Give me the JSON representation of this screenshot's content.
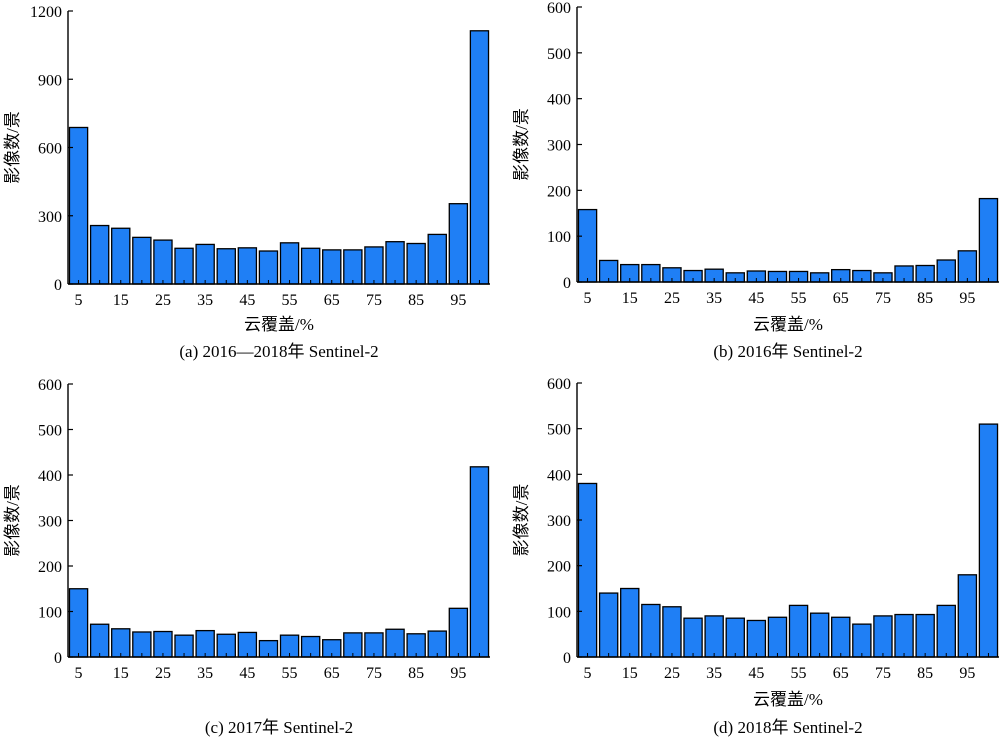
{
  "chart_data": [
    {
      "type": "bar",
      "caption": "(a) 2016—2018年 Sentinel-2",
      "xlabel": "云覆盖/%",
      "ylabel": "影像数/景",
      "ylim": [
        0,
        1200
      ],
      "yticks": [
        0,
        300,
        600,
        900,
        1200
      ],
      "xticks": [
        5,
        15,
        25,
        35,
        45,
        55,
        65,
        75,
        85,
        95
      ],
      "bar_color": "#1f7ff5",
      "categories": [
        5,
        10,
        15,
        20,
        25,
        30,
        35,
        40,
        45,
        50,
        55,
        60,
        65,
        70,
        75,
        80,
        85,
        90,
        95,
        100
      ],
      "values": [
        688,
        257,
        245,
        205,
        193,
        157,
        174,
        155,
        159,
        145,
        181,
        157,
        150,
        150,
        163,
        186,
        178,
        218,
        353,
        1113
      ]
    },
    {
      "type": "bar",
      "caption": "(b) 2016年 Sentinel-2",
      "xlabel": "云覆盖/%",
      "ylabel": "影像数/景",
      "ylim": [
        0,
        600
      ],
      "yticks": [
        0,
        100,
        200,
        300,
        400,
        500,
        600
      ],
      "xticks": [
        5,
        15,
        25,
        35,
        45,
        55,
        65,
        75,
        85,
        95
      ],
      "bar_color": "#1f7ff5",
      "categories": [
        5,
        10,
        15,
        20,
        25,
        30,
        35,
        40,
        45,
        50,
        55,
        60,
        65,
        70,
        75,
        80,
        85,
        90,
        95,
        100
      ],
      "values": [
        158,
        47,
        38,
        38,
        31,
        25,
        28,
        20,
        24,
        23,
        23,
        20,
        27,
        25,
        20,
        35,
        36,
        48,
        68,
        182
      ]
    },
    {
      "type": "bar",
      "caption": "(c) 2017年 Sentinel-2",
      "xlabel": "",
      "ylabel": "影像数/景",
      "ylim": [
        0,
        600
      ],
      "yticks": [
        0,
        100,
        200,
        300,
        400,
        500,
        600
      ],
      "xticks": [
        5,
        15,
        25,
        35,
        45,
        55,
        65,
        75,
        85,
        95
      ],
      "bar_color": "#1f7ff5",
      "categories": [
        5,
        10,
        15,
        20,
        25,
        30,
        35,
        40,
        45,
        50,
        55,
        60,
        65,
        70,
        75,
        80,
        85,
        90,
        95,
        100
      ],
      "values": [
        150,
        72,
        62,
        55,
        56,
        48,
        58,
        50,
        54,
        36,
        48,
        45,
        38,
        53,
        53,
        61,
        51,
        57,
        107,
        418
      ]
    },
    {
      "type": "bar",
      "caption": "(d) 2018年 Sentinel-2",
      "xlabel": "云覆盖/%",
      "ylabel": "影像数/景",
      "ylim": [
        0,
        600
      ],
      "yticks": [
        0,
        100,
        200,
        300,
        400,
        500,
        600
      ],
      "xticks": [
        5,
        15,
        25,
        35,
        45,
        55,
        65,
        75,
        85,
        95
      ],
      "bar_color": "#1f7ff5",
      "categories": [
        5,
        10,
        15,
        20,
        25,
        30,
        35,
        40,
        45,
        50,
        55,
        60,
        65,
        70,
        75,
        80,
        85,
        90,
        95,
        100
      ],
      "values": [
        380,
        140,
        150,
        115,
        110,
        85,
        90,
        85,
        80,
        87,
        113,
        96,
        87,
        72,
        90,
        93,
        93,
        113,
        180,
        510
      ]
    }
  ]
}
